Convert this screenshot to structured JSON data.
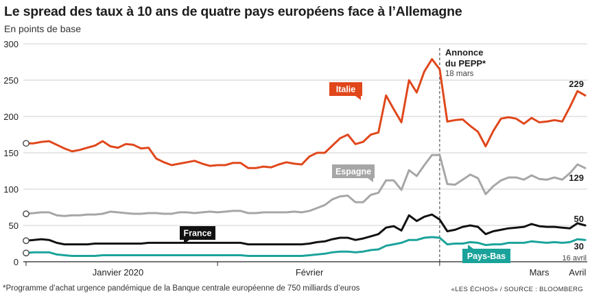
{
  "title": "Le spread des taux à 10 ans de quatre pays européens face à l’Allemagne",
  "subtitle": "En points de base",
  "footnote": "*Programme d’achat urgence pandémique de la Banque centrale européenne de 750 milliards d’euros",
  "source": "«LES ÉCHOS» / SOURCE : BLOOMBERG",
  "event": {
    "title_line1": "Annonce",
    "title_line2": "du PEPP*",
    "date": "18 mars"
  },
  "last_date_label": "16 avril",
  "colors": {
    "Italie": "#e0471b",
    "Espagne": "#a6a6a6",
    "France": "#111111",
    "Pays-Bas": "#1aa39a"
  },
  "chart_data": {
    "type": "line",
    "title": "Le spread des taux à 10 ans de quatre pays européens face à l’Allemagne",
    "subtitle": "En points de base",
    "ylim": [
      0,
      300
    ],
    "yticks": [
      "0",
      "50",
      "100",
      "150",
      "200",
      "250",
      "300"
    ],
    "xticks": [
      "Janvier 2020",
      "Février",
      "Mars",
      "Avril"
    ],
    "grid": true,
    "series": [
      {
        "name": "Italie",
        "end_label": "229",
        "values": [
          163,
          163,
          165,
          166,
          161,
          156,
          152,
          154,
          157,
          160,
          166,
          159,
          157,
          162,
          161,
          156,
          157,
          142,
          137,
          133,
          135,
          137,
          139,
          135,
          132,
          133,
          133,
          136,
          136,
          129,
          129,
          131,
          130,
          134,
          137,
          135,
          134,
          145,
          150,
          150,
          160,
          170,
          175,
          162,
          165,
          175,
          178,
          229,
          210,
          192,
          250,
          233,
          262,
          279,
          265,
          193,
          195,
          196,
          187,
          179,
          159,
          180,
          197,
          199,
          197,
          190,
          198,
          192,
          193,
          195,
          193,
          213,
          235,
          229
        ]
      },
      {
        "name": "Espagne",
        "end_label": "129",
        "values": [
          66,
          67,
          68,
          68,
          64,
          63,
          64,
          64,
          65,
          65,
          66,
          69,
          68,
          67,
          66,
          66,
          67,
          67,
          66,
          66,
          68,
          68,
          67,
          68,
          69,
          68,
          69,
          70,
          70,
          67,
          67,
          68,
          68,
          68,
          68,
          69,
          68,
          70,
          74,
          78,
          86,
          90,
          91,
          82,
          82,
          92,
          95,
          112,
          112,
          99,
          126,
          118,
          133,
          147,
          147,
          107,
          106,
          113,
          120,
          115,
          93,
          104,
          112,
          116,
          116,
          113,
          119,
          114,
          113,
          116,
          113,
          122,
          134,
          129
        ]
      },
      {
        "name": "France",
        "end_label": "50",
        "values": [
          29,
          30,
          31,
          30,
          26,
          24,
          24,
          24,
          24,
          25,
          25,
          25,
          25,
          25,
          25,
          25,
          26,
          26,
          26,
          26,
          26,
          26,
          26,
          26,
          26,
          26,
          26,
          26,
          26,
          24,
          24,
          24,
          24,
          24,
          24,
          24,
          24,
          25,
          27,
          28,
          31,
          33,
          33,
          30,
          32,
          35,
          38,
          47,
          49,
          43,
          64,
          56,
          62,
          65,
          58,
          42,
          44,
          48,
          50,
          48,
          38,
          42,
          44,
          46,
          47,
          48,
          52,
          49,
          48,
          48,
          47,
          46,
          53,
          50
        ]
      },
      {
        "name": "Pays-Bas",
        "end_label": "30",
        "values": [
          12,
          13,
          13,
          13,
          10,
          9,
          8,
          8,
          8,
          8,
          9,
          9,
          9,
          9,
          9,
          9,
          9,
          9,
          9,
          9,
          9,
          9,
          9,
          9,
          9,
          9,
          9,
          9,
          9,
          8,
          8,
          8,
          8,
          8,
          8,
          8,
          8,
          9,
          10,
          11,
          13,
          14,
          14,
          13,
          14,
          16,
          17,
          22,
          24,
          26,
          30,
          30,
          33,
          34,
          33,
          24,
          25,
          25,
          27,
          26,
          23,
          24,
          24,
          26,
          26,
          26,
          28,
          27,
          26,
          27,
          26,
          27,
          31,
          30
        ]
      }
    ]
  }
}
